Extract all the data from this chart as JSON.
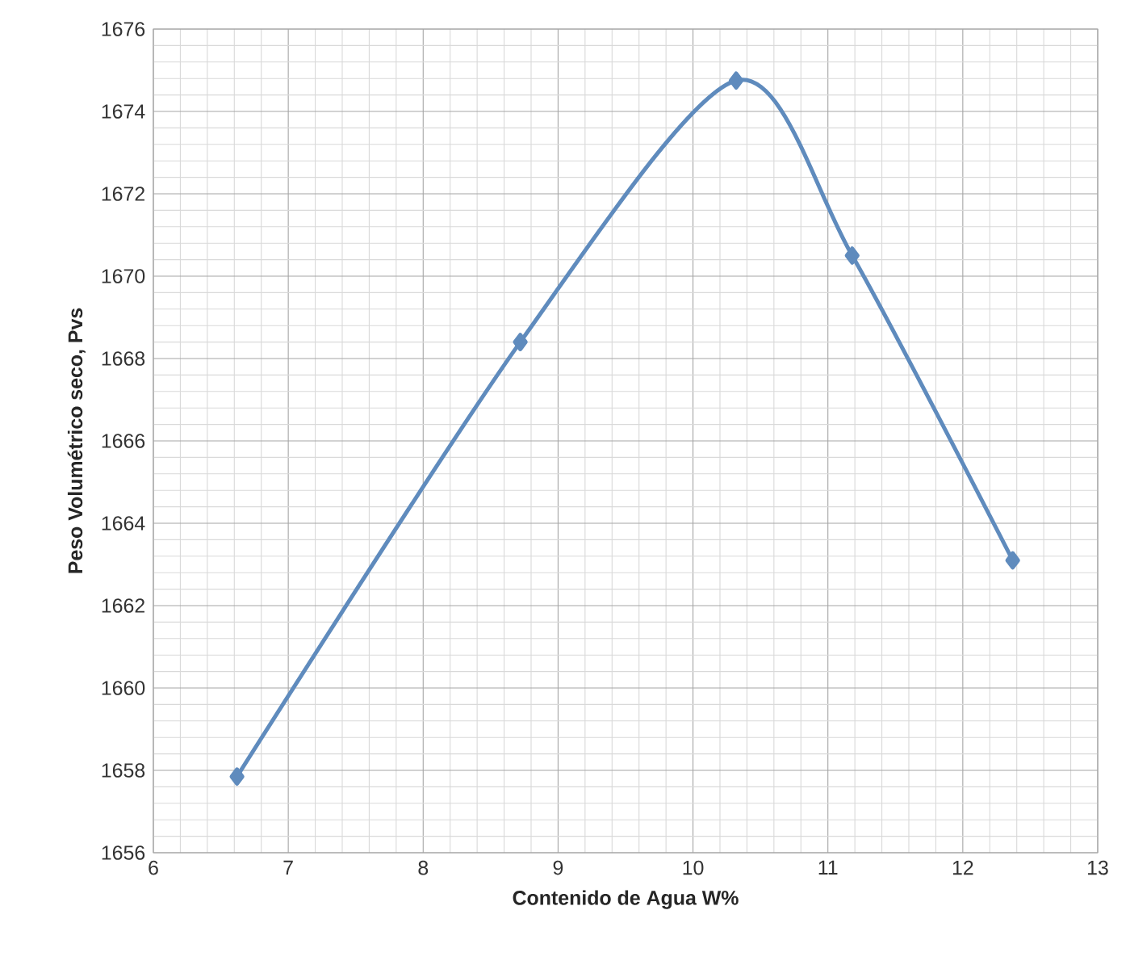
{
  "chart_data": {
    "type": "line",
    "xlabel": "Contenido de Agua W%",
    "ylabel": "Peso Volumétrico seco, Pvs",
    "x": [
      6.62,
      8.72,
      10.32,
      11.18,
      12.37
    ],
    "series": [
      {
        "color": "#5f8bbd",
        "values": [
          1657.85,
          1668.4,
          1674.75,
          1670.5,
          1663.1
        ]
      }
    ],
    "xlim": [
      6,
      13
    ],
    "xticks": [
      6,
      7,
      8,
      9,
      10,
      11,
      12,
      13
    ],
    "ylim": [
      1656,
      1676
    ],
    "yticks": [
      1656,
      1658,
      1660,
      1662,
      1664,
      1666,
      1668,
      1670,
      1672,
      1674,
      1676
    ],
    "grid": true,
    "marker": "diamond",
    "line_style": "solid"
  }
}
